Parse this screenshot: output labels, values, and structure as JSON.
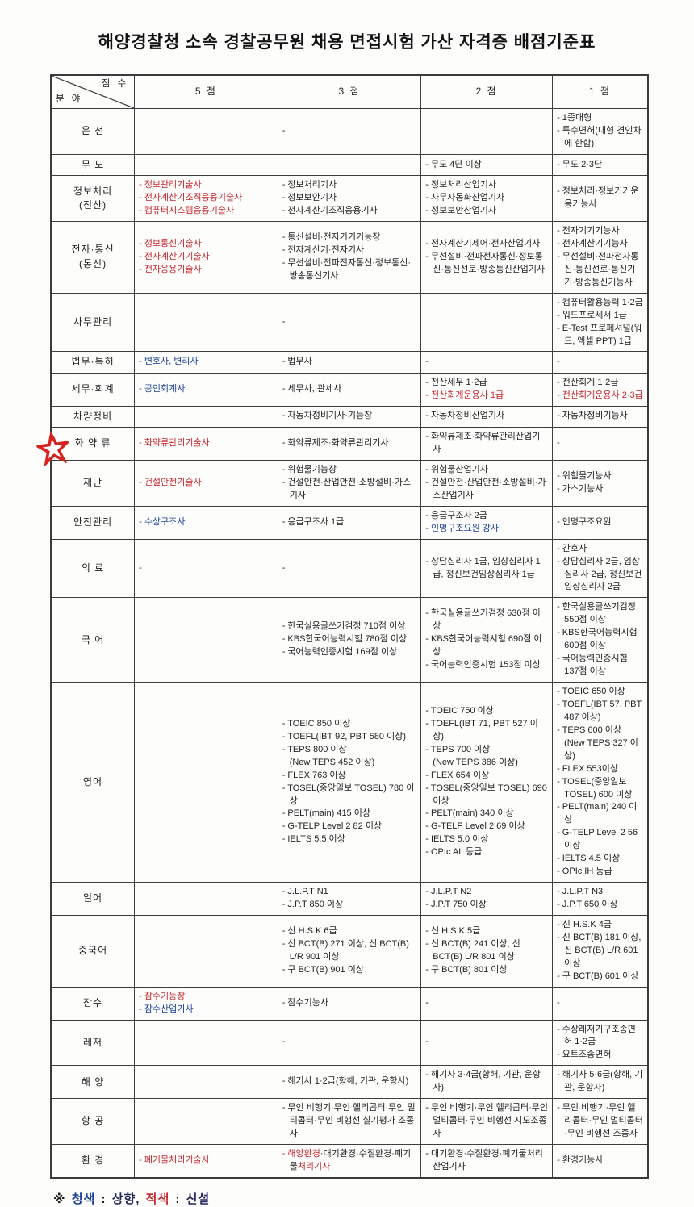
{
  "title": "해양경찰청 소속 경찰공무원 채용 면접시험 가산 자격증 배점기준표",
  "colors": {
    "red": "#c4272e",
    "blue": "#1b3f94",
    "ink": "#23275c",
    "black": "#1f1f1f"
  },
  "table": {
    "corner_top": "점 수",
    "corner_bottom": "분 야",
    "columns": [
      "5 점",
      "3 점",
      "2 점",
      "1 점"
    ],
    "rows": [
      {
        "label": "운    전",
        "cells": [
          [],
          [
            "-"
          ],
          [],
          [
            "- 1종대형",
            "- 특수면허(대형 견인차에 한함)"
          ]
        ]
      },
      {
        "label": "무    도",
        "cells": [
          [],
          [],
          [
            "- 무도 4단 이상"
          ],
          [
            "- 무도 2·3단"
          ]
        ]
      },
      {
        "label": "정보처리\n(전산)",
        "cells": [
          [
            {
              "t": "- 정보관리기술사",
              "c": "red"
            },
            {
              "t": "- 전자계산기조직응용기술사",
              "c": "red"
            },
            {
              "t": "- 컴퓨터시스템응용기술사",
              "c": "red"
            }
          ],
          [
            "- 정보처리기사",
            "- 정보보안기사",
            "- 전자계산기조직응용기사"
          ],
          [
            "- 정보처리산업기사",
            "- 사무자동화산업기사",
            "- 정보보안산업기사"
          ],
          [
            "- 정보처리·정보기기운용기능사"
          ]
        ]
      },
      {
        "label": "전자·통신\n(통신)",
        "cells": [
          [
            {
              "t": "- 정보통신기술사",
              "c": "red"
            },
            {
              "t": "- 전자계산기기술사",
              "c": "red"
            },
            {
              "t": "- 전자응용기술사",
              "c": "red"
            }
          ],
          [
            "- 통신설비·전자기기기능장",
            "- 전자계산기·전자기사",
            "- 무선설비·전파전자통신·정보통신·방송통신기사"
          ],
          [
            "- 전자계산기제어·전자산업기사",
            "- 무선설비·전파전자통신·정보통신·통신선로·방송통신산업기사"
          ],
          [
            "- 전자기기기능사",
            "- 전자계산기기능사",
            "- 무선설비·전파전자통신·통신선로·통신기기·방송통신기능사"
          ]
        ]
      },
      {
        "label": "사무관리",
        "cells": [
          [],
          [
            "-"
          ],
          [],
          [
            "- 컴퓨터활용능력 1·2급",
            "- 워드프로세서 1급",
            "- E-Test 프로페셔널(워드, 엑셀 PPT) 1급"
          ]
        ]
      },
      {
        "label": "법무·특허",
        "cells": [
          [
            {
              "t": "- 변호사, 변리사",
              "c": "blue"
            }
          ],
          [
            "- 법무사"
          ],
          [
            "-"
          ],
          [
            "-"
          ]
        ]
      },
      {
        "label": "세무·회계",
        "cells": [
          [
            {
              "t": "- 공인회계사",
              "c": "blue"
            }
          ],
          [
            "- 세무사, 관세사"
          ],
          [
            "- 전산세무 1·2급",
            {
              "t": "- 전산회계운용사 1급",
              "c": "red"
            }
          ],
          [
            "- 전산회계 1·2급",
            {
              "t": "- 전산회계운용사 2·3급",
              "c": "red"
            }
          ]
        ]
      },
      {
        "label": "차량정비",
        "cells": [
          [],
          [
            "- 자동차정비기사·기능장"
          ],
          [
            "- 자동차정비산업기사"
          ],
          [
            "- 자동차정비기능사"
          ]
        ]
      },
      {
        "label": "화 약 류",
        "cells": [
          [
            {
              "t": "- 화약류관리기술사",
              "c": "red"
            }
          ],
          [
            "- 화약류제조·화약류관리기사"
          ],
          [
            "- 화약류제조·화약류관리산업기사"
          ],
          [
            "-"
          ]
        ]
      },
      {
        "label": "재난",
        "cells": [
          [
            {
              "t": "- 건설안전기술사",
              "c": "red"
            }
          ],
          [
            "- 위험물기능장",
            "- 건설안전·산업안전·소방설비·가스기사"
          ],
          [
            "- 위험물산업기사",
            "- 건설안전·산업안전·소방설비·가스산업기사"
          ],
          [
            "- 위험물기능사",
            "- 가스기능사"
          ]
        ]
      },
      {
        "label": "안전관리",
        "cells": [
          [
            {
              "t": "- 수상구조사",
              "c": "blue"
            }
          ],
          [
            "- 응급구조사 1급"
          ],
          [
            "- 응급구조사 2급",
            {
              "t": "- 인명구조요원 강사",
              "c": "blue"
            }
          ],
          [
            "- 인명구조요원"
          ]
        ]
      },
      {
        "label": "의  료",
        "cells": [
          [
            "-"
          ],
          [
            "-"
          ],
          [
            "- 상담심리사 1급, 임상심리사 1급, 정신보건임상심리사 1급"
          ],
          [
            "- 간호사",
            "- 상담심리사 2급, 임상심리사 2급, 정신보건임상심리사 2급"
          ]
        ]
      },
      {
        "label": "국    어",
        "cells": [
          [],
          [
            "- 한국실용글쓰기검정 710점 이상",
            "- KBS한국어능력시험 780점 이상",
            "- 국어능력인증시험 169점 이상"
          ],
          [
            "- 한국실용글쓰기검정 630점 이상",
            "- KBS한국어능력시험 690점 이상",
            "- 국어능력인증시험 153점 이상"
          ],
          [
            "- 한국실용글쓰기검정 550점 이상",
            "- KBS한국어능력시험 600점 이상",
            "- 국어능력인증시험 137점 이상"
          ]
        ]
      },
      {
        "label": "영어",
        "cells": [
          [],
          [
            "- TOEIC 850 이상",
            "- TOEFL(IBT 92,  PBT 580 이상)",
            "- TEPS 800 이상\n(New TEPS 452 이상)",
            "- FLEX 763 이상",
            "- TOSEL(중앙일보 TOSEL) 780 이상",
            "- PELT(main) 415 이상",
            "- G-TELP Level 2 82 이상",
            "- IELTS 5.5 이상"
          ],
          [
            "- TOEIC 750 이상",
            "- TOEFL(IBT 71,  PBT 527 이상)",
            "- TEPS 700 이상\n(New TEPS 386 이상)",
            "- FLEX 654 이상",
            "- TOSEL(중앙일보 TOSEL) 690 이상",
            "- PELT(main) 340 이상",
            "- G-TELP Level 2 69 이상",
            "- IELTS 5.0 이상",
            "- OPIc AL 등급"
          ],
          [
            "- TOEIC 650 이상",
            "- TOEFL(IBT 57,  PBT 487 이상)",
            "- TEPS 600 이상\n(New TEPS 327 이상)",
            "- FLEX 553이상",
            "- TOSEL(중앙일보 TOSEL) 600 이상",
            "- PELT(main) 240 이상",
            "- G-TELP Level 2 56 이상",
            "- IELTS 4.5 이상",
            "- OPIc IH 등급"
          ]
        ]
      },
      {
        "label": "일어",
        "cells": [
          [],
          [
            "- J.L.P.T N1",
            "- J.P.T 850 이상"
          ],
          [
            "- J.L.P.T N2",
            "- J.P.T 750 이상"
          ],
          [
            "- J.L.P.T N3",
            "- J.P.T 650 이상"
          ]
        ]
      },
      {
        "label": "중국어",
        "cells": [
          [],
          [
            "- 신 H.S.K 6급",
            "- 신 BCT(B) 271 이상, 신 BCT(B) L/R 901 이상",
            "- 구 BCT(B) 901 이상"
          ],
          [
            "- 신 H.S.K 5급",
            "- 신 BCT(B) 241 이상, 신 BCT(B) L/R 801 이상",
            "- 구 BCT(B) 801 이상"
          ],
          [
            "- 신 H.S.K 4급",
            "- 신 BCT(B) 181 이상, 신 BCT(B) L/R 601 이상",
            "- 구 BCT(B) 601 이상"
          ]
        ]
      },
      {
        "label": "잠수",
        "cells": [
          [
            {
              "t": "- 잠수기능장",
              "c": "red"
            },
            {
              "t": "- 잠수산업기사",
              "c": "blue"
            }
          ],
          [
            "- 잠수기능사"
          ],
          [
            "-"
          ],
          [
            "-"
          ]
        ]
      },
      {
        "label": "레저",
        "cells": [
          [],
          [
            "-"
          ],
          [
            "-"
          ],
          [
            "- 수상레저기구조종면허 1·2급",
            "- 요트조종면허"
          ]
        ]
      },
      {
        "label": "해    양",
        "cells": [
          [],
          [
            "- 해기사 1·2급(항해, 기관, 운항사)"
          ],
          [
            "- 해기사 3·4급(항해, 기관, 운항사)"
          ],
          [
            "- 해기사 5·6급(항해, 기관, 운항사)"
          ]
        ]
      },
      {
        "label": "항    공",
        "cells": [
          [],
          [
            "- 무인 비행기·무인 헬리콥터·무인 멀티콥터·무인 비행선 실기평가 조종자"
          ],
          [
            "- 무인 비행기·무인 헬리콥터·무인 멀티콥터·무인 비행선 지도조종자"
          ],
          [
            "- 무인 비행기·무인 헬리콥터·무인 멀티콥터·무인 비행선 조종자"
          ]
        ]
      },
      {
        "label": "환    경",
        "cells": [
          [
            {
              "t": "- 폐기물처리기술사",
              "c": "red"
            }
          ],
          [
            {
              "parts": [
                {
                  "t": "- 해양환경",
                  "c": "red"
                },
                {
                  "t": "·대기환경·수질환경·폐기물",
                  "c": "black"
                },
                {
                  "t": "처리기사",
                  "c": "red"
                }
              ]
            }
          ],
          [
            "- 대기환경·수질환경·폐기물처리산업기사"
          ],
          [
            "- 환경기능사"
          ]
        ]
      }
    ]
  },
  "footnote": {
    "parts": [
      {
        "t": "※ ",
        "c": "black"
      },
      {
        "t": "청색",
        "c": "blue"
      },
      {
        "t": " : ",
        "c": "black"
      },
      {
        "t": "상향, ",
        "c": "ink"
      },
      {
        "t": "적색",
        "c": "red"
      },
      {
        "t": " : ",
        "c": "black"
      },
      {
        "t": "신설",
        "c": "ink"
      }
    ]
  }
}
